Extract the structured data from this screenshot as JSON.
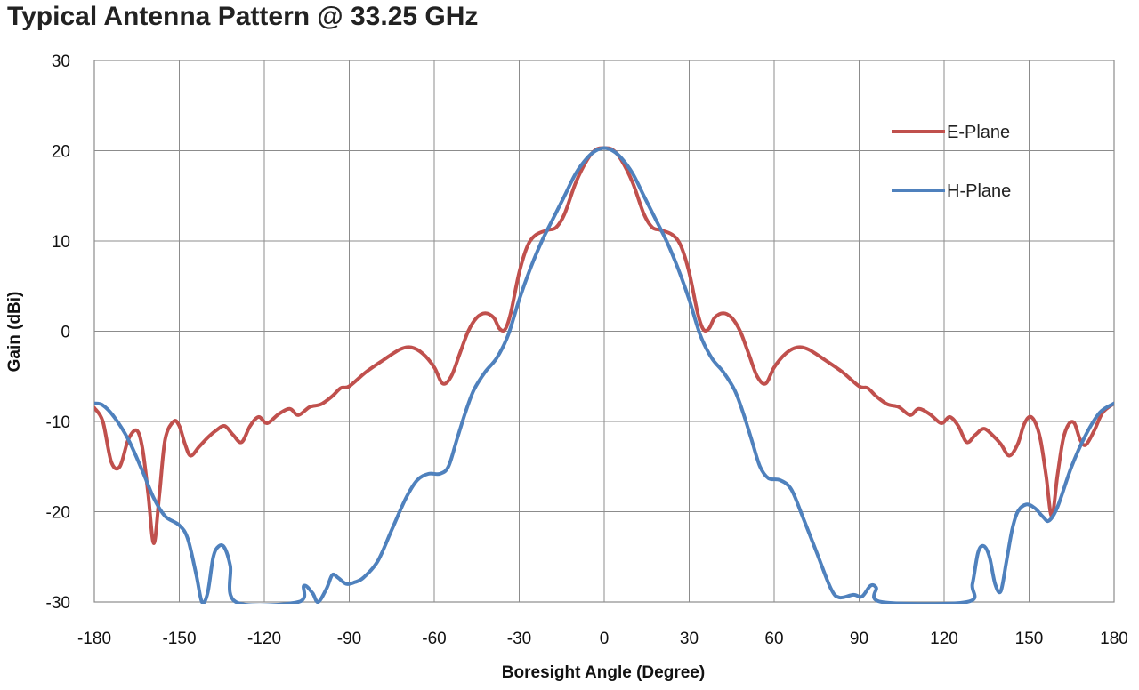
{
  "chart_data": {
    "type": "line",
    "title": "Typical Antenna Pattern @ 33.25 GHz",
    "xlabel": "Boresight Angle (Degree)",
    "ylabel": "Gain (dBi)",
    "xlim": [
      -180,
      180
    ],
    "ylim": [
      -30,
      30
    ],
    "xticks": [
      -180,
      -150,
      -120,
      -90,
      -60,
      -30,
      0,
      30,
      60,
      90,
      120,
      150,
      180
    ],
    "yticks": [
      -30,
      -20,
      -10,
      0,
      10,
      20,
      30
    ],
    "xtick_labels": [
      "-180",
      "-150",
      "-120",
      "-90",
      "-60",
      "-30",
      "0",
      "30",
      "60",
      "90",
      "120",
      "150",
      "180"
    ],
    "ytick_labels": [
      "-30",
      "-20",
      "-10",
      "0",
      "10",
      "20",
      "30"
    ],
    "grid": true,
    "legend_position": "top-right",
    "series": [
      {
        "name": "E-Plane",
        "color": "#c0504d",
        "points": [
          [
            -180,
            -8.5
          ],
          [
            -177,
            -10
          ],
          [
            -174,
            -14.5
          ],
          [
            -171,
            -15
          ],
          [
            -168,
            -12
          ],
          [
            -165,
            -11
          ],
          [
            -163,
            -13
          ],
          [
            -161,
            -18
          ],
          [
            -159,
            -23.5
          ],
          [
            -157,
            -18
          ],
          [
            -155,
            -12
          ],
          [
            -152,
            -10
          ],
          [
            -150,
            -10.5
          ],
          [
            -148,
            -12.5
          ],
          [
            -146,
            -13.8
          ],
          [
            -143,
            -12.8
          ],
          [
            -140,
            -11.8
          ],
          [
            -137,
            -11
          ],
          [
            -134,
            -10.5
          ],
          [
            -131,
            -11.5
          ],
          [
            -128,
            -12.3
          ],
          [
            -125,
            -10.5
          ],
          [
            -122,
            -9.5
          ],
          [
            -119,
            -10.2
          ],
          [
            -115,
            -9.2
          ],
          [
            -111,
            -8.6
          ],
          [
            -108,
            -9.3
          ],
          [
            -104,
            -8.4
          ],
          [
            -100,
            -8.1
          ],
          [
            -96,
            -7.2
          ],
          [
            -93,
            -6.3
          ],
          [
            -90,
            -6.1
          ],
          [
            -84,
            -4.5
          ],
          [
            -78,
            -3.2
          ],
          [
            -72,
            -2
          ],
          [
            -68,
            -1.8
          ],
          [
            -64,
            -2.5
          ],
          [
            -60,
            -4
          ],
          [
            -57,
            -5.8
          ],
          [
            -54,
            -5
          ],
          [
            -51,
            -2.5
          ],
          [
            -48,
            0
          ],
          [
            -45,
            1.5
          ],
          [
            -42,
            2
          ],
          [
            -39,
            1.5
          ],
          [
            -37,
            0.3
          ],
          [
            -35,
            0.2
          ],
          [
            -33,
            2
          ],
          [
            -30,
            6.5
          ],
          [
            -27,
            9.5
          ],
          [
            -24,
            10.7
          ],
          [
            -20,
            11.2
          ],
          [
            -17,
            11.5
          ],
          [
            -14,
            13
          ],
          [
            -10,
            16.5
          ],
          [
            -6,
            19
          ],
          [
            -3,
            20.1
          ],
          [
            0,
            20.3
          ],
          [
            3,
            20.1
          ],
          [
            6,
            19
          ],
          [
            10,
            16.5
          ],
          [
            14,
            13
          ],
          [
            17,
            11.5
          ],
          [
            20,
            11.2
          ],
          [
            24,
            10.7
          ],
          [
            27,
            9.5
          ],
          [
            30,
            6.5
          ],
          [
            33,
            2
          ],
          [
            35,
            0.2
          ],
          [
            37,
            0.3
          ],
          [
            39,
            1.5
          ],
          [
            42,
            2
          ],
          [
            45,
            1.5
          ],
          [
            48,
            0
          ],
          [
            51,
            -2.5
          ],
          [
            54,
            -5
          ],
          [
            57,
            -5.8
          ],
          [
            60,
            -4
          ],
          [
            64,
            -2.5
          ],
          [
            68,
            -1.8
          ],
          [
            72,
            -2
          ],
          [
            78,
            -3.2
          ],
          [
            84,
            -4.5
          ],
          [
            90,
            -6.1
          ],
          [
            93,
            -6.3
          ],
          [
            96,
            -7.2
          ],
          [
            100,
            -8.1
          ],
          [
            104,
            -8.4
          ],
          [
            108,
            -9.3
          ],
          [
            111,
            -8.6
          ],
          [
            115,
            -9.2
          ],
          [
            119,
            -10.2
          ],
          [
            122,
            -9.5
          ],
          [
            125,
            -10.5
          ],
          [
            128,
            -12.3
          ],
          [
            131,
            -11.5
          ],
          [
            134,
            -10.8
          ],
          [
            137,
            -11.5
          ],
          [
            140,
            -12.5
          ],
          [
            143,
            -13.8
          ],
          [
            146,
            -12.5
          ],
          [
            148,
            -10.5
          ],
          [
            150,
            -9.5
          ],
          [
            152,
            -10
          ],
          [
            154,
            -12
          ],
          [
            156,
            -16
          ],
          [
            158,
            -20.5
          ],
          [
            160,
            -16
          ],
          [
            162,
            -12
          ],
          [
            164,
            -10.3
          ],
          [
            166,
            -10.2
          ],
          [
            168,
            -12
          ],
          [
            170,
            -12.6
          ],
          [
            173,
            -11
          ],
          [
            176,
            -9
          ],
          [
            180,
            -8
          ]
        ]
      },
      {
        "name": "H-Plane",
        "color": "#4f81bd",
        "points": [
          [
            -180,
            -8
          ],
          [
            -177,
            -8.2
          ],
          [
            -173,
            -9.5
          ],
          [
            -168,
            -12
          ],
          [
            -163,
            -15.5
          ],
          [
            -159,
            -18.5
          ],
          [
            -155,
            -20.5
          ],
          [
            -150,
            -21.5
          ],
          [
            -147,
            -23
          ],
          [
            -144,
            -27
          ],
          [
            -142,
            -30
          ],
          [
            -140,
            -29
          ],
          [
            -138,
            -25
          ],
          [
            -136,
            -23.8
          ],
          [
            -134,
            -24
          ],
          [
            -132,
            -26
          ],
          [
            -130,
            -30
          ],
          [
            -108,
            -30
          ],
          [
            -106,
            -28.2
          ],
          [
            -103,
            -29
          ],
          [
            -101,
            -30
          ],
          [
            -98,
            -28.5
          ],
          [
            -96,
            -27
          ],
          [
            -94,
            -27.3
          ],
          [
            -91,
            -28
          ],
          [
            -88,
            -27.8
          ],
          [
            -85,
            -27.3
          ],
          [
            -80,
            -25.5
          ],
          [
            -75,
            -22
          ],
          [
            -70,
            -18.5
          ],
          [
            -66,
            -16.5
          ],
          [
            -62,
            -15.8
          ],
          [
            -58,
            -15.8
          ],
          [
            -55,
            -15
          ],
          [
            -52,
            -12
          ],
          [
            -49,
            -9
          ],
          [
            -46,
            -6.5
          ],
          [
            -42,
            -4.5
          ],
          [
            -38,
            -3
          ],
          [
            -34,
            -0.5
          ],
          [
            -30,
            3.5
          ],
          [
            -26,
            7
          ],
          [
            -22,
            10
          ],
          [
            -18,
            12.5
          ],
          [
            -14,
            15
          ],
          [
            -10,
            17.5
          ],
          [
            -6,
            19.2
          ],
          [
            -3,
            20
          ],
          [
            0,
            20.3
          ],
          [
            3,
            20
          ],
          [
            6,
            19.2
          ],
          [
            10,
            17.5
          ],
          [
            14,
            15
          ],
          [
            18,
            12.5
          ],
          [
            22,
            10
          ],
          [
            26,
            7
          ],
          [
            30,
            3.5
          ],
          [
            34,
            -0.5
          ],
          [
            38,
            -3
          ],
          [
            42,
            -4.5
          ],
          [
            46,
            -6.5
          ],
          [
            49,
            -9
          ],
          [
            52,
            -12
          ],
          [
            55,
            -15
          ],
          [
            58,
            -16.3
          ],
          [
            62,
            -16.5
          ],
          [
            66,
            -17.5
          ],
          [
            70,
            -20.5
          ],
          [
            75,
            -24.5
          ],
          [
            80,
            -28.5
          ],
          [
            83,
            -29.5
          ],
          [
            88,
            -29.2
          ],
          [
            91,
            -29.4
          ],
          [
            94,
            -28.2
          ],
          [
            96,
            -28.4
          ],
          [
            98,
            -30
          ],
          [
            128,
            -30
          ],
          [
            130,
            -28
          ],
          [
            132,
            -24.5
          ],
          [
            134,
            -23.8
          ],
          [
            136,
            -25
          ],
          [
            138,
            -28
          ],
          [
            140,
            -28.8
          ],
          [
            142,
            -25.5
          ],
          [
            144,
            -22
          ],
          [
            146,
            -20
          ],
          [
            149,
            -19.2
          ],
          [
            152,
            -19.6
          ],
          [
            155,
            -20.6
          ],
          [
            157,
            -21
          ],
          [
            160,
            -19.5
          ],
          [
            165,
            -15
          ],
          [
            170,
            -11.5
          ],
          [
            175,
            -9
          ],
          [
            180,
            -8
          ]
        ]
      }
    ]
  }
}
